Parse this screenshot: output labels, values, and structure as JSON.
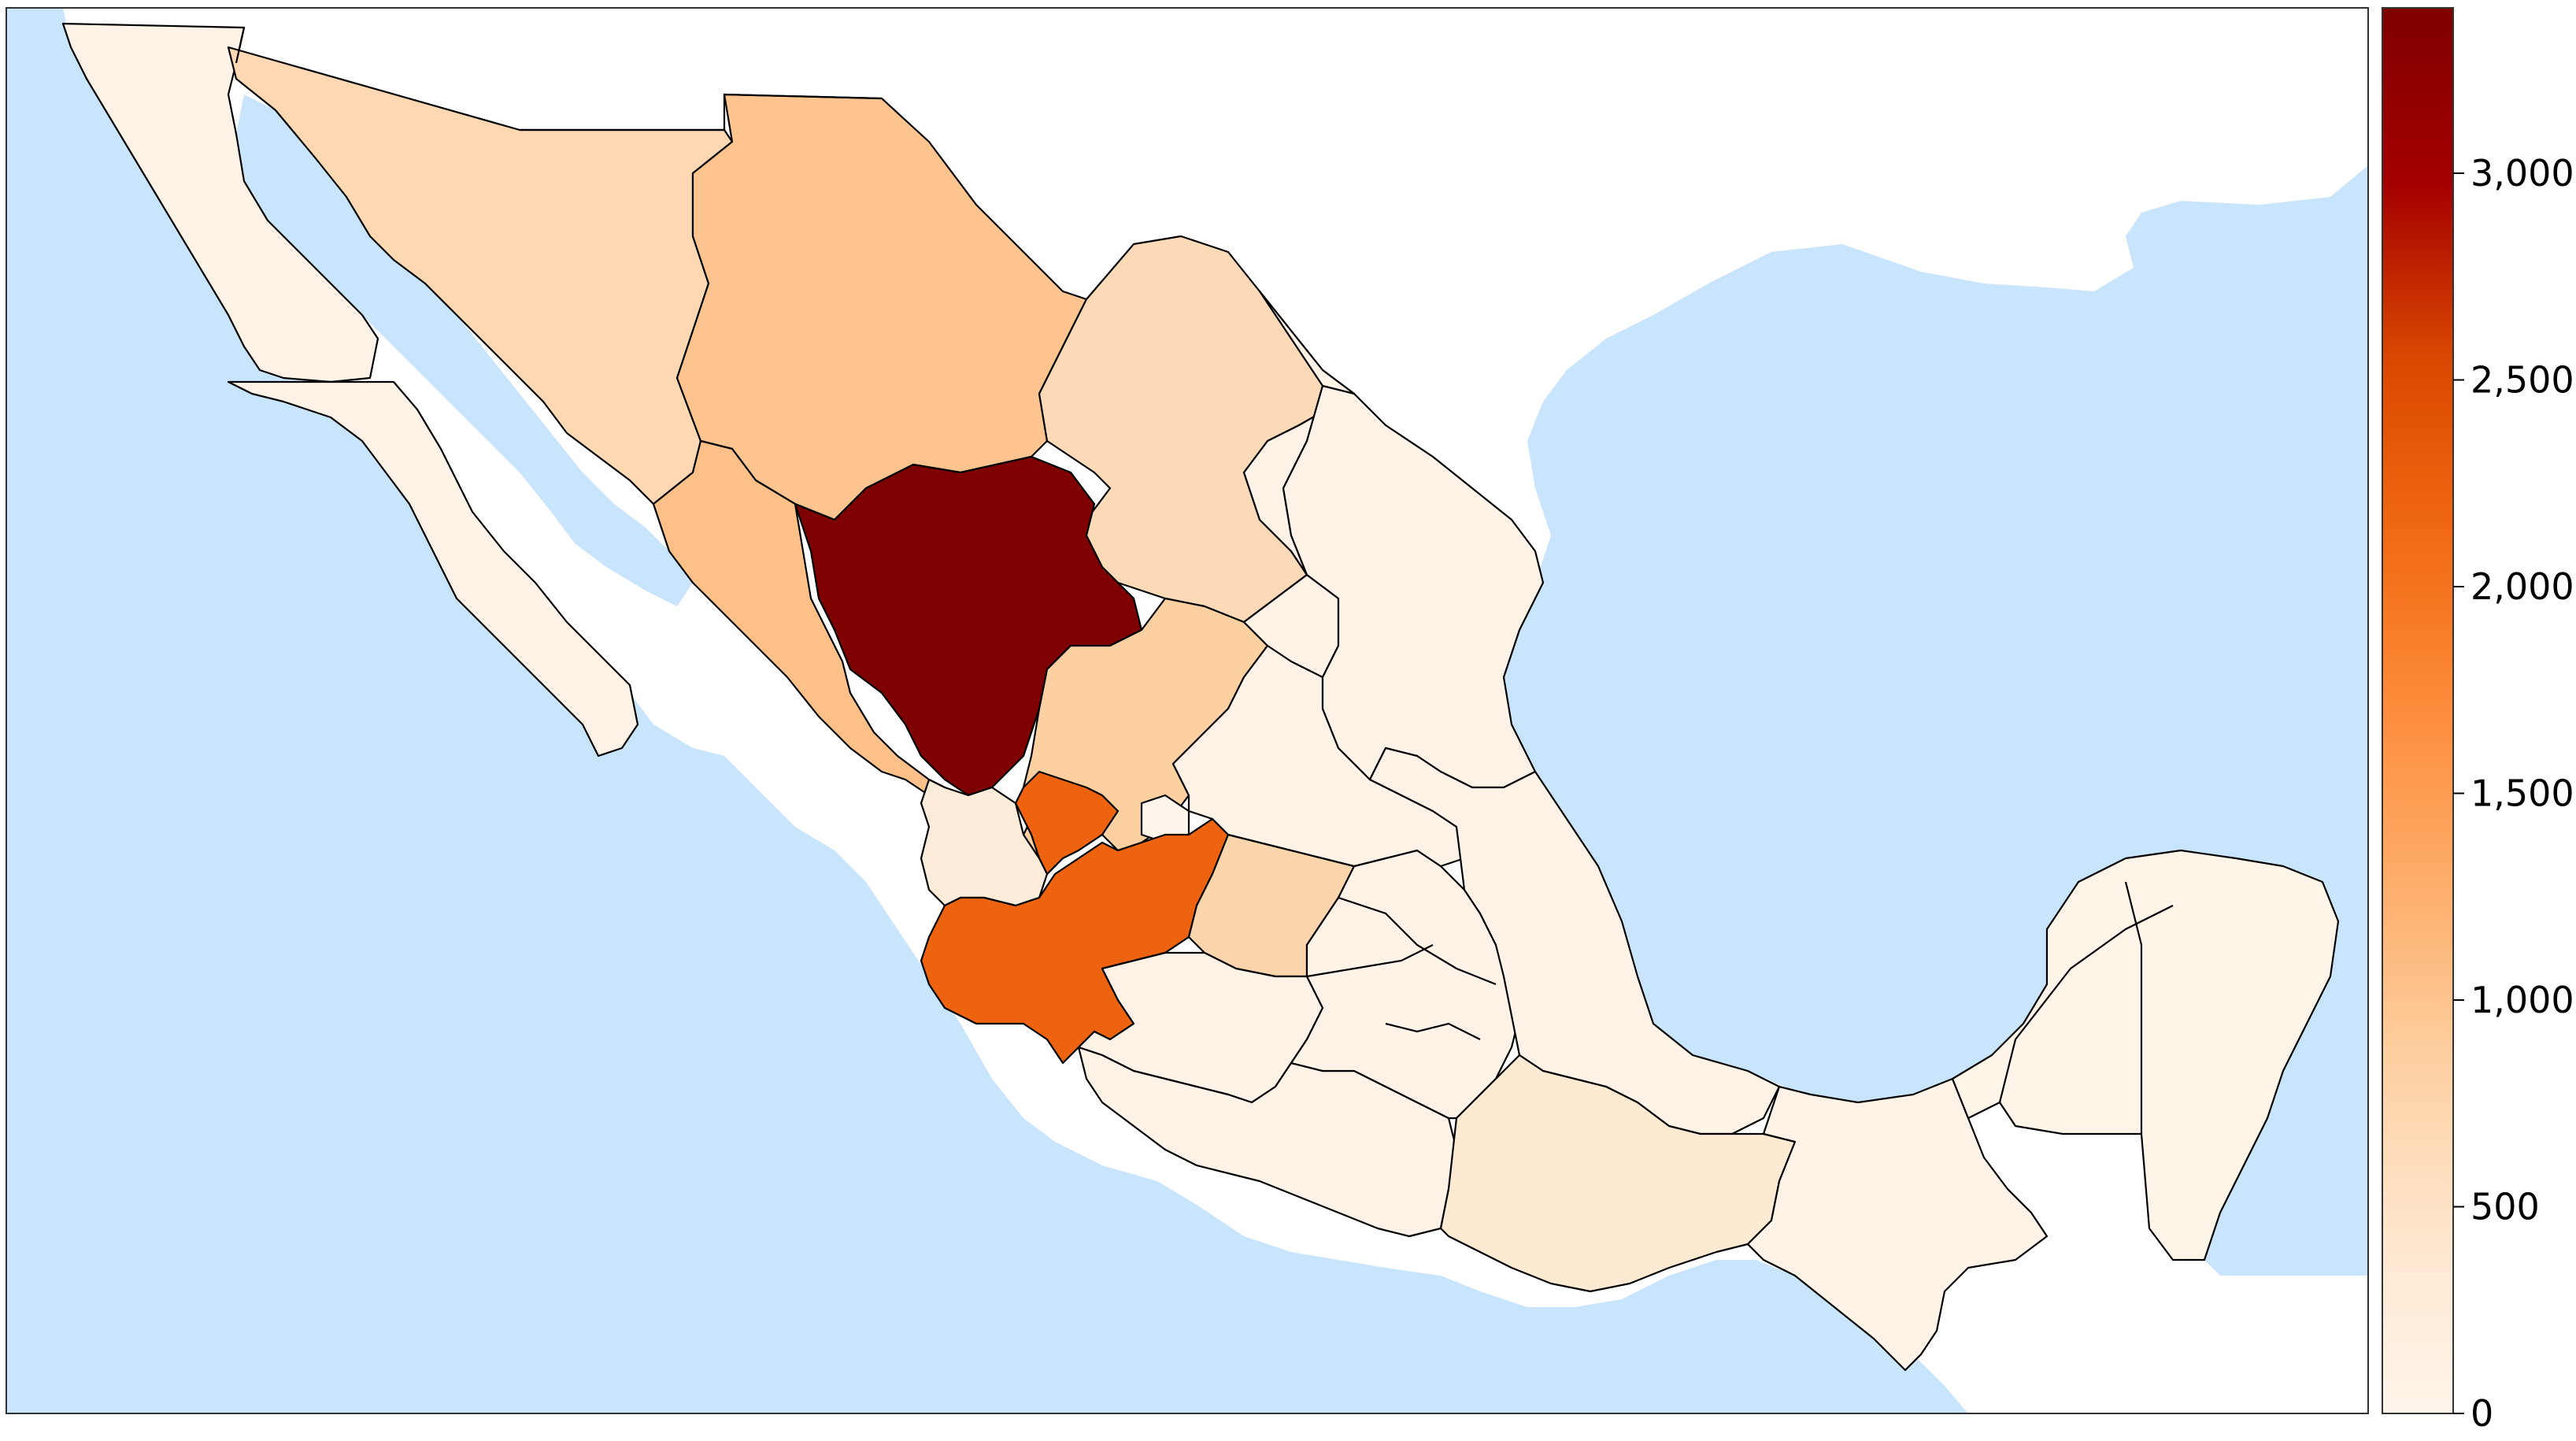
{
  "colors": {
    "ocean": "#c9e4fd",
    "land": "#ffffff",
    "scale": [
      "#fff5eb",
      "#fee6ce",
      "#fdd0a2",
      "#fdae6b",
      "#fd8d3c",
      "#f16913",
      "#d94801",
      "#a50000",
      "#7f0000"
    ]
  },
  "colorbar": {
    "min": 0,
    "max": 3400,
    "ticks": [
      {
        "value": 0,
        "label": "0"
      },
      {
        "value": 500,
        "label": "500"
      },
      {
        "value": 1000,
        "label": "1,000"
      },
      {
        "value": 1500,
        "label": "1,500"
      },
      {
        "value": 2000,
        "label": "2,000"
      },
      {
        "value": 2500,
        "label": "2,500"
      },
      {
        "value": 3000,
        "label": "3,000"
      }
    ]
  },
  "regions": [
    {
      "id": "durango",
      "value": 3400
    },
    {
      "id": "zacatecas-fragment",
      "value": 2200
    },
    {
      "id": "jalisco",
      "value": 2200
    },
    {
      "id": "chihuahua",
      "value": 1000
    },
    {
      "id": "sinaloa",
      "value": 1050
    },
    {
      "id": "sonora",
      "value": 700
    },
    {
      "id": "coahuila",
      "value": 650
    },
    {
      "id": "zacatecas",
      "value": 850
    },
    {
      "id": "guanajuato",
      "value": 750
    },
    {
      "id": "oaxaca",
      "value": 350
    },
    {
      "id": "nayarit",
      "value": 250
    },
    {
      "id": "baja-california",
      "value": 50
    },
    {
      "id": "baja-california-sur",
      "value": 50
    },
    {
      "id": "nuevo-leon",
      "value": 60
    },
    {
      "id": "tamaulipas",
      "value": 60
    },
    {
      "id": "san-luis-potosi",
      "value": 60
    },
    {
      "id": "michoacan",
      "value": 80
    },
    {
      "id": "guerrero",
      "value": 80
    },
    {
      "id": "chiapas",
      "value": 50
    },
    {
      "id": "yucatan-peninsula",
      "value": 40
    },
    {
      "id": "veracruz",
      "value": 50
    },
    {
      "id": "central-states",
      "value": 60
    },
    {
      "id": "aguascalientes",
      "value": 10
    }
  ]
}
